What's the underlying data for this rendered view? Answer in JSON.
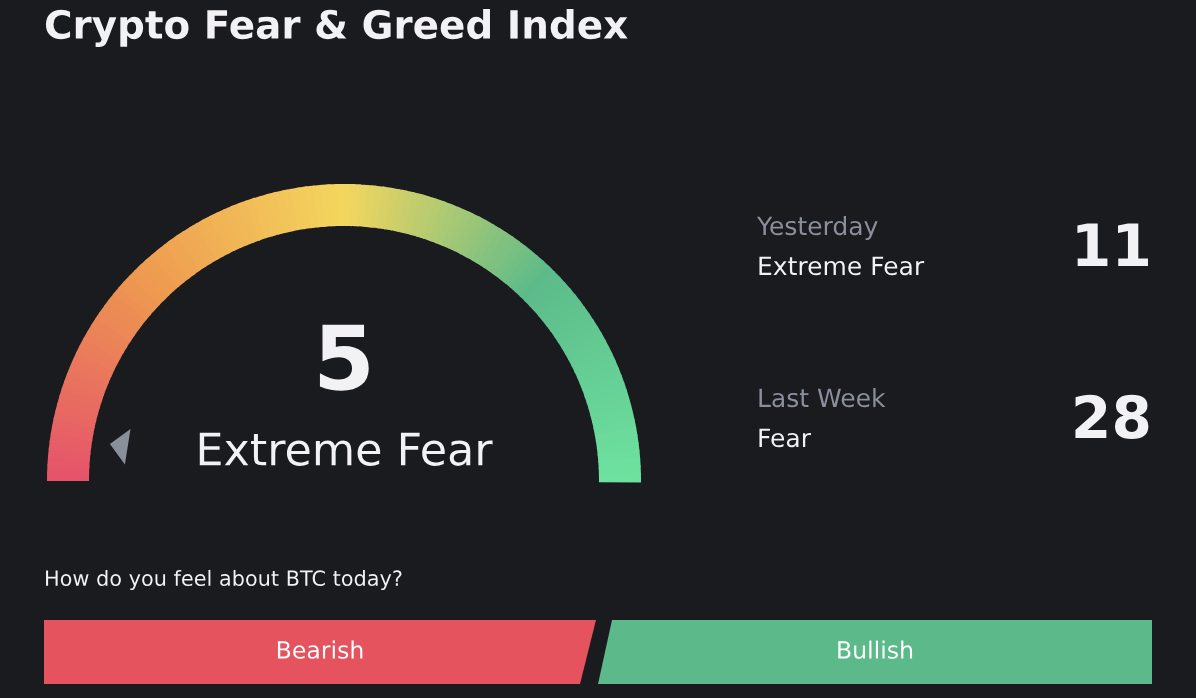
{
  "chart_data": {
    "type": "other",
    "title": "Crypto Fear & Greed Index",
    "categories": [
      null,
      "Yesterday",
      "Last Week"
    ],
    "values": [
      5,
      11,
      28
    ],
    "data_labels": true,
    "annotations": [
      "Extreme Fear",
      "Extreme Fear",
      "Fear",
      "How do you feel about BTC today?",
      "Bearish",
      "Bullish"
    ]
  }
}
